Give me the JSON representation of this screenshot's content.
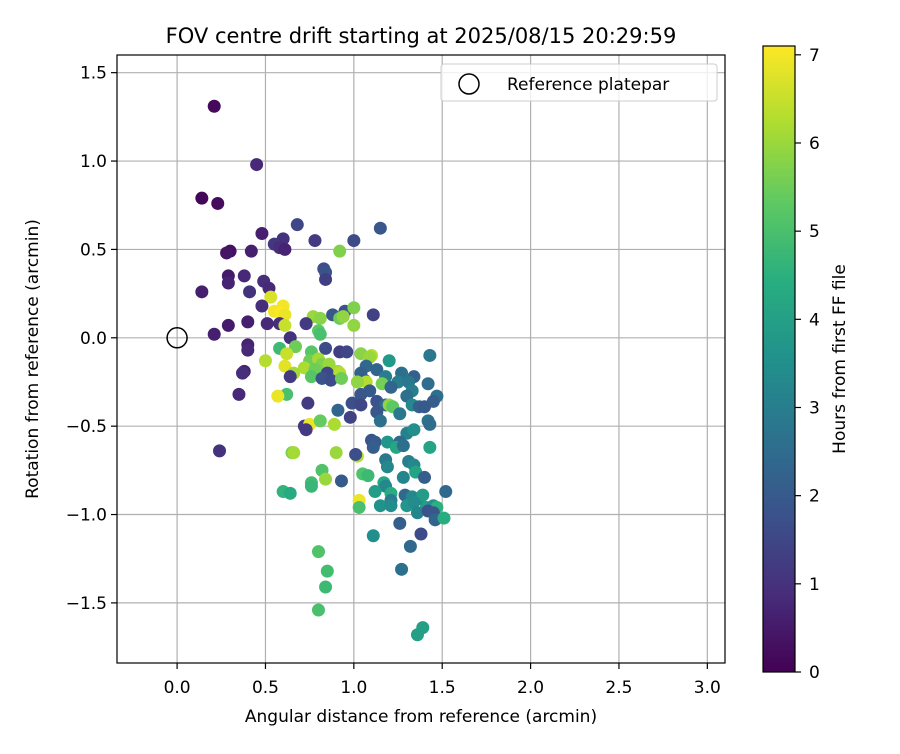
{
  "chart_data": {
    "type": "scatter",
    "title": "FOV centre drift starting at 2025/08/15 20:29:59",
    "xlabel": "Angular distance from reference (arcmin)",
    "ylabel": "Rotation from reference (arcmin)",
    "xlim": [
      -0.34,
      3.1
    ],
    "ylim": [
      -1.84,
      1.6
    ],
    "xticks": [
      "0.0",
      "0.5",
      "1.0",
      "1.5",
      "2.0",
      "2.5",
      "3.0"
    ],
    "yticks": [
      "−1.5",
      "−1.0",
      "−0.5",
      "0.0",
      "0.5",
      "1.0",
      "1.5"
    ],
    "grid": true,
    "legend": {
      "position": "top-right",
      "label": "Reference platepar"
    },
    "reference_point": {
      "x": 0.0,
      "y": 0.0
    },
    "colorbar": {
      "label": "Hours from first FF file",
      "range": [
        0,
        7.1
      ],
      "ticks": [
        "0",
        "1",
        "2",
        "3",
        "4",
        "5",
        "6",
        "7"
      ],
      "colormap": "viridis"
    },
    "points": [
      {
        "x": 0.21,
        "y": 1.31,
        "t": 0.15
      },
      {
        "x": 0.45,
        "y": 0.98,
        "t": 0.8
      },
      {
        "x": 0.14,
        "y": 0.79,
        "t": 0.1
      },
      {
        "x": 0.23,
        "y": 0.76,
        "t": 0.2
      },
      {
        "x": 0.68,
        "y": 0.64,
        "t": 1.5
      },
      {
        "x": 1.15,
        "y": 0.62,
        "t": 1.9
      },
      {
        "x": 0.48,
        "y": 0.59,
        "t": 0.6
      },
      {
        "x": 0.6,
        "y": 0.56,
        "t": 1.0
      },
      {
        "x": 0.78,
        "y": 0.55,
        "t": 1.2
      },
      {
        "x": 1.0,
        "y": 0.55,
        "t": 1.6
      },
      {
        "x": 0.55,
        "y": 0.53,
        "t": 1.1
      },
      {
        "x": 0.58,
        "y": 0.51,
        "t": 0.9
      },
      {
        "x": 0.61,
        "y": 0.5,
        "t": 0.7
      },
      {
        "x": 0.3,
        "y": 0.49,
        "t": 0.3
      },
      {
        "x": 0.28,
        "y": 0.48,
        "t": 0.4
      },
      {
        "x": 0.42,
        "y": 0.49,
        "t": 0.6
      },
      {
        "x": 0.92,
        "y": 0.49,
        "t": 5.7
      },
      {
        "x": 0.83,
        "y": 0.39,
        "t": 1.7
      },
      {
        "x": 0.84,
        "y": 0.37,
        "t": 1.8
      },
      {
        "x": 0.29,
        "y": 0.35,
        "t": 0.5
      },
      {
        "x": 0.38,
        "y": 0.35,
        "t": 0.8
      },
      {
        "x": 0.84,
        "y": 0.33,
        "t": 1.3
      },
      {
        "x": 0.49,
        "y": 0.32,
        "t": 0.9
      },
      {
        "x": 0.29,
        "y": 0.31,
        "t": 0.7
      },
      {
        "x": 0.52,
        "y": 0.28,
        "t": 0.8
      },
      {
        "x": 0.14,
        "y": 0.26,
        "t": 0.6
      },
      {
        "x": 0.41,
        "y": 0.26,
        "t": 1.0
      },
      {
        "x": 0.53,
        "y": 0.23,
        "t": 6.7
      },
      {
        "x": 0.48,
        "y": 0.18,
        "t": 0.9
      },
      {
        "x": 0.6,
        "y": 0.18,
        "t": 7.0
      },
      {
        "x": 0.55,
        "y": 0.15,
        "t": 7.0
      },
      {
        "x": 0.59,
        "y": 0.14,
        "t": 7.1
      },
      {
        "x": 0.61,
        "y": 0.13,
        "t": 6.9
      },
      {
        "x": 0.77,
        "y": 0.12,
        "t": 6.0
      },
      {
        "x": 0.81,
        "y": 0.11,
        "t": 5.8
      },
      {
        "x": 0.88,
        "y": 0.13,
        "t": 1.9
      },
      {
        "x": 0.92,
        "y": 0.11,
        "t": 5.5
      },
      {
        "x": 0.95,
        "y": 0.15,
        "t": 1.8
      },
      {
        "x": 1.0,
        "y": 0.17,
        "t": 5.7
      },
      {
        "x": 0.94,
        "y": 0.12,
        "t": 5.9
      },
      {
        "x": 1.11,
        "y": 0.13,
        "t": 1.4
      },
      {
        "x": 0.73,
        "y": 0.08,
        "t": 1.2
      },
      {
        "x": 0.51,
        "y": 0.08,
        "t": 0.8
      },
      {
        "x": 0.58,
        "y": 0.08,
        "t": 0.9
      },
      {
        "x": 0.61,
        "y": 0.07,
        "t": 6.5
      },
      {
        "x": 0.29,
        "y": 0.07,
        "t": 0.5
      },
      {
        "x": 0.4,
        "y": 0.09,
        "t": 0.6
      },
      {
        "x": 0.8,
        "y": 0.04,
        "t": 5.3
      },
      {
        "x": 1.0,
        "y": 0.07,
        "t": 5.9
      },
      {
        "x": 0.21,
        "y": 0.02,
        "t": 0.6
      },
      {
        "x": 0.64,
        "y": 0.0,
        "t": 1.0
      },
      {
        "x": 0.81,
        "y": 0.02,
        "t": 5.0
      },
      {
        "x": 0.4,
        "y": -0.04,
        "t": 0.7
      },
      {
        "x": 0.4,
        "y": -0.07,
        "t": 0.8
      },
      {
        "x": 0.58,
        "y": -0.06,
        "t": 4.8
      },
      {
        "x": 0.67,
        "y": -0.05,
        "t": 5.5
      },
      {
        "x": 0.62,
        "y": -0.09,
        "t": 6.5
      },
      {
        "x": 0.76,
        "y": -0.08,
        "t": 5.2
      },
      {
        "x": 0.84,
        "y": -0.06,
        "t": 1.6
      },
      {
        "x": 0.92,
        "y": -0.08,
        "t": 1.3
      },
      {
        "x": 0.96,
        "y": -0.08,
        "t": 1.5
      },
      {
        "x": 1.04,
        "y": -0.09,
        "t": 5.8
      },
      {
        "x": 1.1,
        "y": -0.1,
        "t": 6.3
      },
      {
        "x": 1.09,
        "y": -0.11,
        "t": 6.0
      },
      {
        "x": 1.2,
        "y": -0.13,
        "t": 3.8
      },
      {
        "x": 0.5,
        "y": -0.13,
        "t": 6.3
      },
      {
        "x": 0.75,
        "y": -0.13,
        "t": 5.5
      },
      {
        "x": 0.8,
        "y": -0.12,
        "t": 6.1
      },
      {
        "x": 0.82,
        "y": -0.15,
        "t": 5.7
      },
      {
        "x": 0.86,
        "y": -0.15,
        "t": 6.0
      },
      {
        "x": 1.07,
        "y": -0.16,
        "t": 2.4
      },
      {
        "x": 1.13,
        "y": -0.18,
        "t": 2.3
      },
      {
        "x": 1.43,
        "y": -0.1,
        "t": 2.8
      },
      {
        "x": 0.61,
        "y": -0.16,
        "t": 6.8
      },
      {
        "x": 0.72,
        "y": -0.17,
        "t": 6.2
      },
      {
        "x": 0.78,
        "y": -0.18,
        "t": 5.5
      },
      {
        "x": 0.91,
        "y": -0.19,
        "t": 6.1
      },
      {
        "x": 0.38,
        "y": -0.19,
        "t": 0.7
      },
      {
        "x": 0.37,
        "y": -0.2,
        "t": 0.9
      },
      {
        "x": 0.66,
        "y": -0.2,
        "t": 6.1
      },
      {
        "x": 0.85,
        "y": -0.2,
        "t": 1.5
      },
      {
        "x": 0.92,
        "y": -0.2,
        "t": 6.3
      },
      {
        "x": 1.04,
        "y": -0.2,
        "t": 2.2
      },
      {
        "x": 1.18,
        "y": -0.22,
        "t": 3.0
      },
      {
        "x": 1.27,
        "y": -0.2,
        "t": 2.6
      },
      {
        "x": 1.34,
        "y": -0.22,
        "t": 2.2
      },
      {
        "x": 0.64,
        "y": -0.22,
        "t": 1.2
      },
      {
        "x": 0.76,
        "y": -0.22,
        "t": 5.2
      },
      {
        "x": 0.82,
        "y": -0.23,
        "t": 1.8
      },
      {
        "x": 0.87,
        "y": -0.24,
        "t": 1.6
      },
      {
        "x": 0.93,
        "y": -0.23,
        "t": 5.5
      },
      {
        "x": 1.06,
        "y": -0.24,
        "t": 2.0
      },
      {
        "x": 1.07,
        "y": -0.25,
        "t": 6.3
      },
      {
        "x": 1.02,
        "y": -0.25,
        "t": 5.9
      },
      {
        "x": 1.16,
        "y": -0.26,
        "t": 5.6
      },
      {
        "x": 1.25,
        "y": -0.25,
        "t": 3.0
      },
      {
        "x": 1.31,
        "y": -0.25,
        "t": 2.8
      },
      {
        "x": 1.42,
        "y": -0.26,
        "t": 2.5
      },
      {
        "x": 1.21,
        "y": -0.28,
        "t": 2.3
      },
      {
        "x": 1.33,
        "y": -0.3,
        "t": 3.0
      },
      {
        "x": 1.09,
        "y": -0.3,
        "t": 2.0
      },
      {
        "x": 1.04,
        "y": -0.32,
        "t": 1.9
      },
      {
        "x": 1.3,
        "y": -0.33,
        "t": 2.6
      },
      {
        "x": 0.62,
        "y": -0.32,
        "t": 5.0
      },
      {
        "x": 0.57,
        "y": -0.33,
        "t": 6.9
      },
      {
        "x": 0.35,
        "y": -0.32,
        "t": 0.8
      },
      {
        "x": 1.47,
        "y": -0.33,
        "t": 2.6
      },
      {
        "x": 1.45,
        "y": -0.36,
        "t": 2.1
      },
      {
        "x": 1.13,
        "y": -0.36,
        "t": 1.8
      },
      {
        "x": 1.18,
        "y": -0.38,
        "t": 2.4
      },
      {
        "x": 0.74,
        "y": -0.37,
        "t": 1.2
      },
      {
        "x": 0.99,
        "y": -0.37,
        "t": 1.7
      },
      {
        "x": 1.04,
        "y": -0.38,
        "t": 1.5
      },
      {
        "x": 1.2,
        "y": -0.38,
        "t": 5.9
      },
      {
        "x": 1.22,
        "y": -0.39,
        "t": 5.3
      },
      {
        "x": 1.33,
        "y": -0.38,
        "t": 3.3
      },
      {
        "x": 1.37,
        "y": -0.39,
        "t": 2.2
      },
      {
        "x": 1.4,
        "y": -0.39,
        "t": 2.0
      },
      {
        "x": 0.91,
        "y": -0.41,
        "t": 2.3
      },
      {
        "x": 1.13,
        "y": -0.42,
        "t": 1.9
      },
      {
        "x": 1.26,
        "y": -0.43,
        "t": 2.8
      },
      {
        "x": 0.98,
        "y": -0.45,
        "t": 1.4
      },
      {
        "x": 1.15,
        "y": -0.47,
        "t": 2.6
      },
      {
        "x": 1.42,
        "y": -0.47,
        "t": 2.7
      },
      {
        "x": 1.43,
        "y": -0.49,
        "t": 2.5
      },
      {
        "x": 0.72,
        "y": -0.5,
        "t": 1.2
      },
      {
        "x": 0.75,
        "y": -0.49,
        "t": 6.9
      },
      {
        "x": 0.81,
        "y": -0.47,
        "t": 5.4
      },
      {
        "x": 0.89,
        "y": -0.49,
        "t": 6.2
      },
      {
        "x": 0.73,
        "y": -0.52,
        "t": 1.2
      },
      {
        "x": 1.3,
        "y": -0.54,
        "t": 3.1
      },
      {
        "x": 1.34,
        "y": -0.52,
        "t": 3.5
      },
      {
        "x": 1.1,
        "y": -0.58,
        "t": 1.8
      },
      {
        "x": 1.12,
        "y": -0.59,
        "t": 2.0
      },
      {
        "x": 1.19,
        "y": -0.59,
        "t": 3.7
      },
      {
        "x": 1.26,
        "y": -0.59,
        "t": 2.4
      },
      {
        "x": 1.11,
        "y": -0.62,
        "t": 2.1
      },
      {
        "x": 1.24,
        "y": -0.62,
        "t": 4.2
      },
      {
        "x": 1.28,
        "y": -0.61,
        "t": 2.6
      },
      {
        "x": 1.43,
        "y": -0.62,
        "t": 4.1
      },
      {
        "x": 0.24,
        "y": -0.64,
        "t": 1.0
      },
      {
        "x": 0.65,
        "y": -0.65,
        "t": 5.6
      },
      {
        "x": 0.66,
        "y": -0.65,
        "t": 6.1
      },
      {
        "x": 0.9,
        "y": -0.65,
        "t": 6.0
      },
      {
        "x": 1.02,
        "y": -0.67,
        "t": 6.3
      },
      {
        "x": 1.01,
        "y": -0.66,
        "t": 1.7
      },
      {
        "x": 1.18,
        "y": -0.69,
        "t": 2.8
      },
      {
        "x": 1.19,
        "y": -0.73,
        "t": 3.3
      },
      {
        "x": 1.31,
        "y": -0.7,
        "t": 3.0
      },
      {
        "x": 1.34,
        "y": -0.72,
        "t": 3.3
      },
      {
        "x": 1.35,
        "y": -0.76,
        "t": 4.1
      },
      {
        "x": 1.28,
        "y": -0.79,
        "t": 3.2
      },
      {
        "x": 1.4,
        "y": -0.79,
        "t": 2.1
      },
      {
        "x": 1.05,
        "y": -0.77,
        "t": 5.1
      },
      {
        "x": 1.08,
        "y": -0.78,
        "t": 4.8
      },
      {
        "x": 0.82,
        "y": -0.75,
        "t": 5.1
      },
      {
        "x": 0.76,
        "y": -0.82,
        "t": 4.9
      },
      {
        "x": 0.76,
        "y": -0.84,
        "t": 4.7
      },
      {
        "x": 0.84,
        "y": -0.8,
        "t": 6.0
      },
      {
        "x": 0.93,
        "y": -0.81,
        "t": 2.0
      },
      {
        "x": 1.17,
        "y": -0.82,
        "t": 4.2
      },
      {
        "x": 1.18,
        "y": -0.84,
        "t": 3.3
      },
      {
        "x": 1.12,
        "y": -0.87,
        "t": 3.9
      },
      {
        "x": 1.21,
        "y": -0.88,
        "t": 4.4
      },
      {
        "x": 1.29,
        "y": -0.89,
        "t": 2.4
      },
      {
        "x": 1.33,
        "y": -0.9,
        "t": 3.3
      },
      {
        "x": 1.37,
        "y": -0.91,
        "t": 3.2
      },
      {
        "x": 1.39,
        "y": -0.89,
        "t": 3.9
      },
      {
        "x": 1.52,
        "y": -0.87,
        "t": 2.4
      },
      {
        "x": 0.6,
        "y": -0.87,
        "t": 4.6
      },
      {
        "x": 0.64,
        "y": -0.88,
        "t": 4.3
      },
      {
        "x": 1.21,
        "y": -0.92,
        "t": 3.0
      },
      {
        "x": 1.3,
        "y": -0.95,
        "t": 3.7
      },
      {
        "x": 1.34,
        "y": -0.93,
        "t": 3.4
      },
      {
        "x": 1.41,
        "y": -0.96,
        "t": 3.9
      },
      {
        "x": 1.45,
        "y": -0.95,
        "t": 3.6
      },
      {
        "x": 1.47,
        "y": -0.96,
        "t": 4.5
      },
      {
        "x": 1.03,
        "y": -0.92,
        "t": 6.9
      },
      {
        "x": 1.03,
        "y": -0.96,
        "t": 5.0
      },
      {
        "x": 1.15,
        "y": -0.95,
        "t": 3.6
      },
      {
        "x": 1.21,
        "y": -0.95,
        "t": 3.4
      },
      {
        "x": 1.36,
        "y": -0.99,
        "t": 3.2
      },
      {
        "x": 1.42,
        "y": -0.98,
        "t": 1.8
      },
      {
        "x": 1.45,
        "y": -0.99,
        "t": 1.9
      },
      {
        "x": 1.46,
        "y": -1.03,
        "t": 2.3
      },
      {
        "x": 1.51,
        "y": -1.02,
        "t": 4.4
      },
      {
        "x": 1.26,
        "y": -1.05,
        "t": 2.1
      },
      {
        "x": 1.38,
        "y": -1.11,
        "t": 1.6
      },
      {
        "x": 1.11,
        "y": -1.12,
        "t": 3.5
      },
      {
        "x": 1.32,
        "y": -1.18,
        "t": 2.4
      },
      {
        "x": 0.8,
        "y": -1.21,
        "t": 5.1
      },
      {
        "x": 0.85,
        "y": -1.32,
        "t": 4.9
      },
      {
        "x": 1.27,
        "y": -1.31,
        "t": 2.6
      },
      {
        "x": 0.84,
        "y": -1.41,
        "t": 4.8
      },
      {
        "x": 0.8,
        "y": -1.54,
        "t": 5.0
      },
      {
        "x": 1.39,
        "y": -1.64,
        "t": 4.0
      },
      {
        "x": 1.36,
        "y": -1.68,
        "t": 4.0
      }
    ]
  }
}
